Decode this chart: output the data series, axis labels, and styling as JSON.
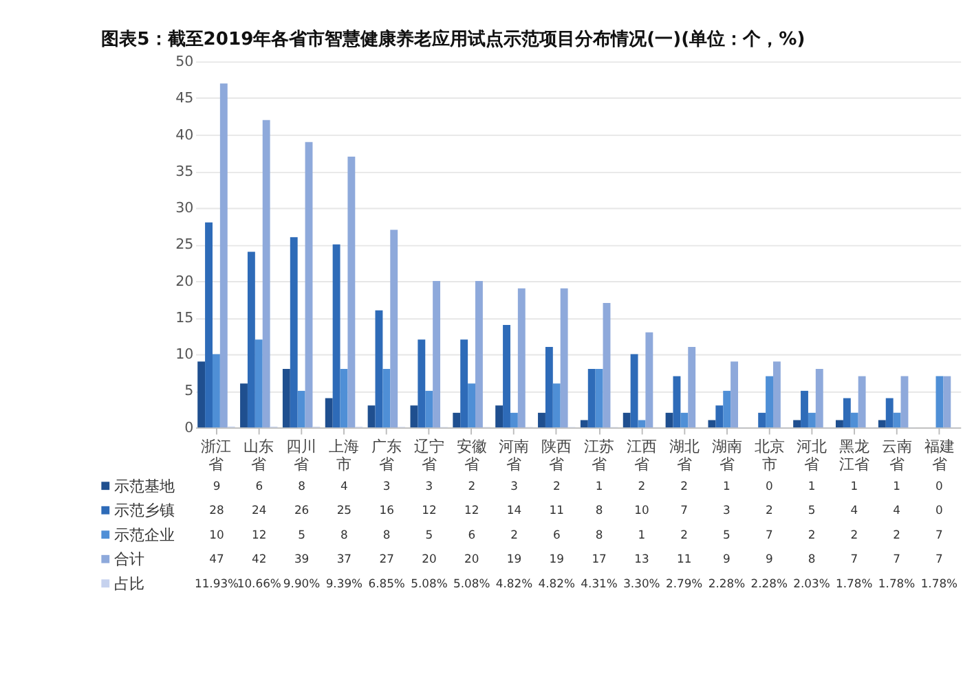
{
  "chart_data": {
    "type": "bar",
    "title": "图表5：截至2019年各省市智慧健康养老应用试点示范项目分布情况(一)(单位：个，%)",
    "categories": [
      "浙江省",
      "山东省",
      "四川省",
      "上海市",
      "广东省",
      "辽宁省",
      "安徽省",
      "河南省",
      "陕西省",
      "江苏省",
      "江西省",
      "湖北省",
      "湖南省",
      "北京市",
      "河北省",
      "黑龙江省",
      "云南省",
      "福建省"
    ],
    "series": [
      {
        "name": "示范基地",
        "color": "#1f4f8f",
        "values": [
          9,
          6,
          8,
          4,
          3,
          3,
          2,
          3,
          2,
          1,
          2,
          2,
          1,
          0,
          1,
          1,
          1,
          0
        ]
      },
      {
        "name": "示范乡镇",
        "color": "#2e6bb8",
        "values": [
          28,
          24,
          26,
          25,
          16,
          12,
          12,
          14,
          11,
          8,
          10,
          7,
          3,
          2,
          5,
          4,
          4,
          0
        ]
      },
      {
        "name": "示范企业",
        "color": "#4f8fd6",
        "values": [
          10,
          12,
          5,
          8,
          8,
          5,
          6,
          2,
          6,
          8,
          1,
          2,
          5,
          7,
          2,
          2,
          2,
          7
        ]
      },
      {
        "name": "合计",
        "color": "#8ea9db",
        "values": [
          47,
          42,
          39,
          37,
          27,
          20,
          20,
          19,
          19,
          17,
          13,
          11,
          9,
          9,
          8,
          7,
          7,
          7
        ]
      },
      {
        "name": "占比",
        "color": "#c6d2ee",
        "values": [
          0.1193,
          0.1066,
          0.099,
          0.0939,
          0.0685,
          0.0508,
          0.0508,
          0.0482,
          0.0482,
          0.0431,
          0.033,
          0.0279,
          0.0228,
          0.0228,
          0.0203,
          0.0178,
          0.0178,
          0.0178
        ],
        "value_labels": [
          "11.93%",
          "10.66%",
          "9.90%",
          "9.39%",
          "6.85%",
          "5.08%",
          "5.08%",
          "4.82%",
          "4.82%",
          "4.31%",
          "3.30%",
          "2.79%",
          "2.28%",
          "2.28%",
          "2.03%",
          "1.78%",
          "1.78%",
          "1.78%"
        ]
      }
    ],
    "ylim": [
      0,
      50
    ],
    "yticks": [
      0,
      5,
      10,
      15,
      20,
      25,
      30,
      35,
      40,
      45,
      50
    ],
    "grid": "y",
    "data_labels": true,
    "legend": "bottom left"
  }
}
